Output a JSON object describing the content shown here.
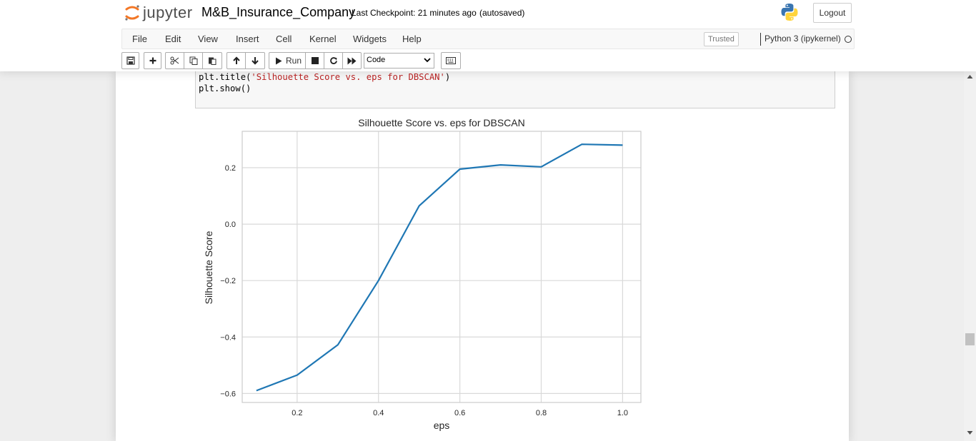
{
  "header": {
    "logo_text": "jupyter",
    "notebook_name": "M&B_Insurance_Company",
    "checkpoint": "Last Checkpoint: 21 minutes ago",
    "autosave": "(autosaved)",
    "logout_label": "Logout"
  },
  "menubar": {
    "items": [
      "File",
      "Edit",
      "View",
      "Insert",
      "Cell",
      "Kernel",
      "Widgets",
      "Help"
    ],
    "trusted_label": "Trusted",
    "kernel_name": "Python 3 (ipykernel)"
  },
  "toolbar": {
    "run_label": "Run",
    "cell_type": "Code"
  },
  "code_cell": {
    "line1_prefix": "plt.title(",
    "line1_string": "'Silhouette Score vs. eps for DBSCAN'",
    "line1_suffix": ")",
    "line2": "plt.show()"
  },
  "chart_data": {
    "type": "line",
    "title": "Silhouette Score vs. eps for DBSCAN",
    "xlabel": "eps",
    "ylabel": "Silhouette Score",
    "x": [
      0.1,
      0.2,
      0.3,
      0.4,
      0.5,
      0.6,
      0.7,
      0.8,
      0.9,
      1.0
    ],
    "series": [
      {
        "values": [
          -0.59,
          -0.535,
          -0.428,
          -0.2,
          0.065,
          0.195,
          0.21,
          0.203,
          0.283,
          0.28
        ]
      }
    ],
    "xlim": [
      0.065,
      1.045
    ],
    "ylim": [
      -0.632,
      0.329
    ],
    "xticks": [
      0.2,
      0.4,
      0.6,
      0.8,
      1.0
    ],
    "xtick_labels": [
      "0.2",
      "0.4",
      "0.6",
      "0.8",
      "1.0"
    ],
    "yticks": [
      -0.6,
      -0.4,
      -0.2,
      0.0,
      0.2
    ],
    "ytick_labels": [
      "−0.6",
      "−0.4",
      "−0.2",
      "0.0",
      "0.2"
    ],
    "grid": true,
    "line_color": "#1f77b4"
  }
}
